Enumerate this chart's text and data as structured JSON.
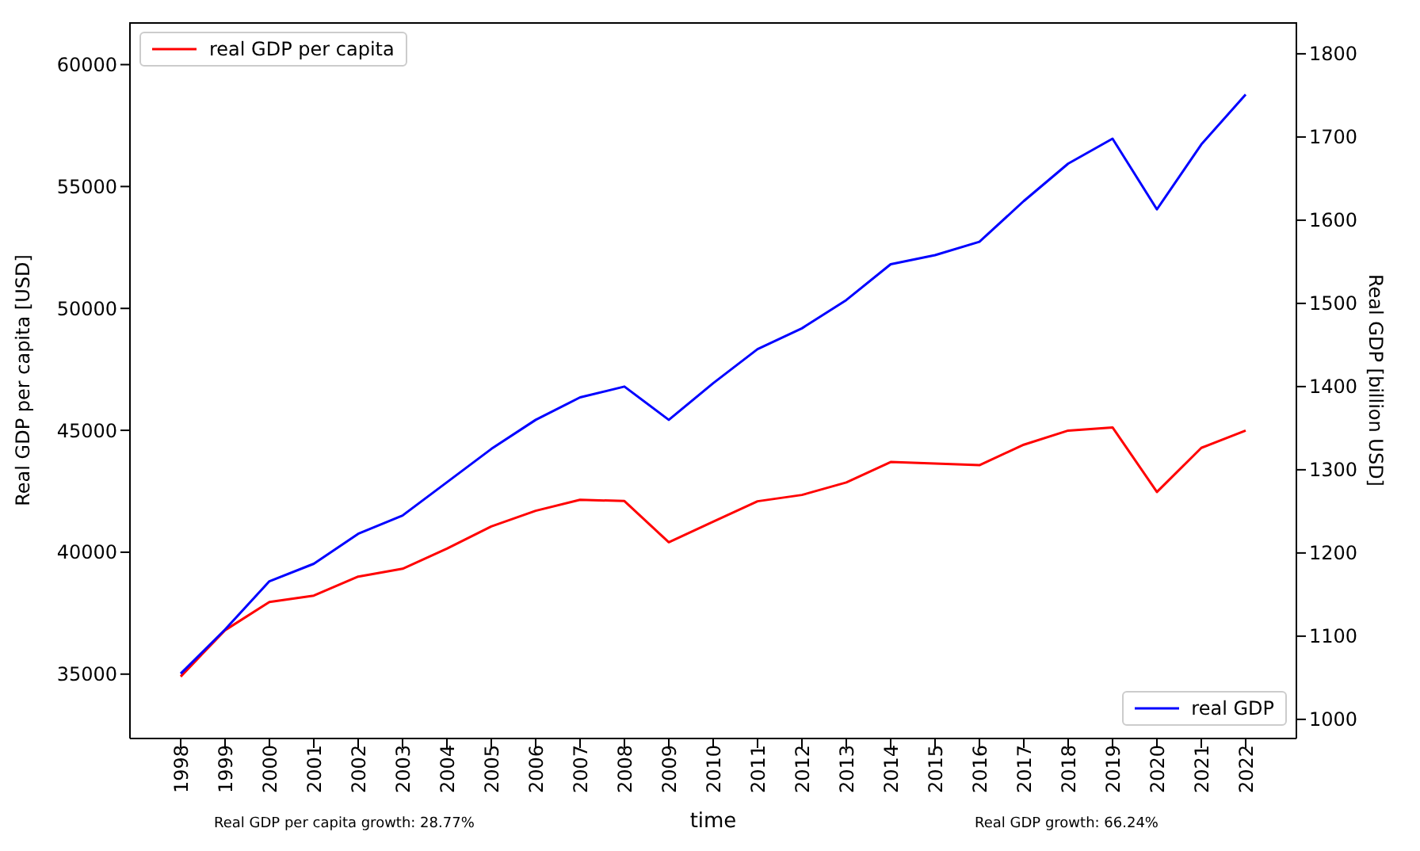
{
  "chart_data": {
    "type": "line",
    "xlabel": "time",
    "ylabel": "Real GDP per capita [USD]",
    "y2label": "Real GDP [billion USD]",
    "categories": [
      "1998",
      "1999",
      "2000",
      "2001",
      "2002",
      "2003",
      "2004",
      "2005",
      "2006",
      "2007",
      "2008",
      "2009",
      "2010",
      "2011",
      "2012",
      "2013",
      "2014",
      "2015",
      "2016",
      "2017",
      "2018",
      "2019",
      "2020",
      "2021",
      "2022"
    ],
    "series": [
      {
        "name": "real GDP per capita",
        "color": "#ff0000",
        "values": [
          34900,
          36800,
          37960,
          38220,
          39000,
          39320,
          40150,
          41060,
          41700,
          42150,
          42100,
          40410,
          41250,
          42090,
          42350,
          42860,
          43700,
          43640,
          43570,
          44410,
          44990,
          45120,
          42470,
          44280,
          44990
        ]
      },
      {
        "name": "real GDP",
        "color": "#0000ff",
        "axis": "y2",
        "values": [
          1055,
          1108,
          1166,
          1187,
          1223,
          1245,
          1285,
          1325,
          1360,
          1387,
          1400,
          1360,
          1404,
          1445,
          1470,
          1504,
          1547,
          1558,
          1574,
          1623,
          1668,
          1698,
          1613,
          1691,
          1751
        ]
      }
    ],
    "ylim": [
      32360,
      61740
    ],
    "yticks": [
      35000,
      40000,
      45000,
      50000,
      55000,
      60000
    ],
    "y2lim": [
      977,
      1838
    ],
    "y2ticks": [
      1000,
      1100,
      1200,
      1300,
      1400,
      1500,
      1600,
      1700,
      1800
    ],
    "grid": false,
    "legend": [
      "top left",
      "bottom right"
    ],
    "marker": "none",
    "line_style": "solid",
    "annotations": [
      "Real GDP per capita growth: 28.77%",
      "Real GDP growth: 66.24%"
    ]
  }
}
